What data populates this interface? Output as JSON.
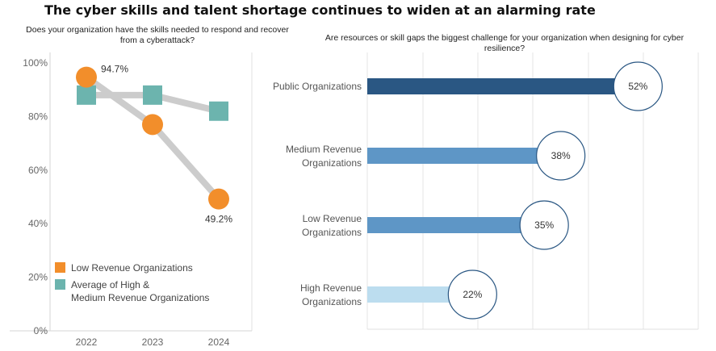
{
  "title": "The cyber skills and talent shortage continues to widen at an alarming rate",
  "chart_data": [
    {
      "type": "line",
      "title": "Does your organization have the skills needed to respond and recover from a cyberattack?",
      "x": [
        "2022",
        "2023",
        "2024"
      ],
      "ylim": [
        0,
        100
      ],
      "yticks": [
        "0%",
        "20%",
        "40%",
        "60%",
        "80%",
        "100%"
      ],
      "grid": false,
      "legend_position": "bottom-left",
      "series": [
        {
          "name": "Low Revenue Organizations",
          "values": [
            94.7,
            77,
            49.2
          ],
          "marker": "circle",
          "color": "#F28E2B",
          "labels": [
            "94.7%",
            "",
            "49.2%"
          ]
        },
        {
          "name": "Average of High & Medium Revenue Organizations",
          "values": [
            88,
            88,
            82
          ],
          "marker": "square",
          "color": "#6CB4AE",
          "labels": [
            "",
            "",
            ""
          ]
        }
      ],
      "connector_color": "#cccccc"
    },
    {
      "type": "bar",
      "orientation": "horizontal",
      "title": "Are resources or skill gaps the biggest challenge for your organization when designing for cyber resilience?",
      "xlim": [
        0,
        60
      ],
      "grid": true,
      "categories": [
        "Public Organizations",
        "Medium Revenue Organizations",
        "Low Revenue Organizations",
        "High Revenue Organizations"
      ],
      "values": [
        52,
        38,
        35,
        22
      ],
      "value_labels": [
        "52%",
        "38%",
        "35%",
        "22%"
      ],
      "colors": [
        "#2A5783",
        "#5E96C6",
        "#5E96C6",
        "#BCDDEF"
      ]
    }
  ]
}
